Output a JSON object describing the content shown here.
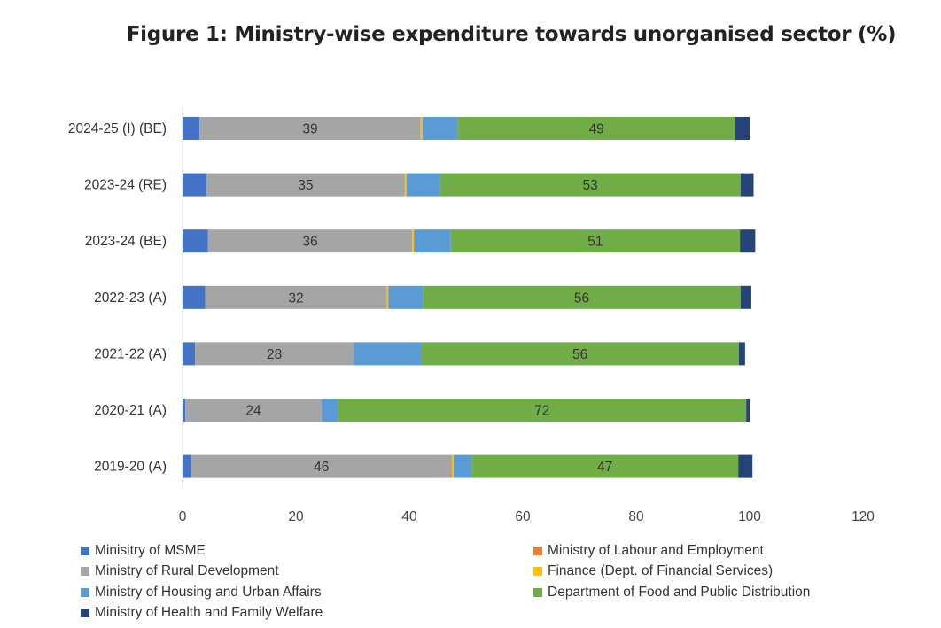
{
  "chart_data": {
    "type": "bar",
    "orientation": "horizontal",
    "stacked": true,
    "title": "Figure 1: Ministry-wise expenditure towards unorganised sector (%)",
    "categories": [
      "2024-25 (I) (BE)",
      "2023-24 (RE)",
      "2023-24 (BE)",
      "2022-23 (A)",
      "2021-22 (A)",
      "2020-21 (A)",
      "2019-20 (A)"
    ],
    "xlim": [
      0,
      120
    ],
    "xticks": [
      0,
      20,
      40,
      60,
      80,
      100,
      120
    ],
    "grid": false,
    "legend_position": "bottom",
    "series": [
      {
        "name": "Minisitry of MSME",
        "color": "#4472c4",
        "values": [
          3,
          4.2,
          4.5,
          4,
          2.2,
          0.5,
          1.5
        ],
        "labels": [
          null,
          null,
          null,
          null,
          null,
          null,
          null
        ]
      },
      {
        "name": "Ministry of Labour and Employment",
        "color": "#ed7d31",
        "values": [
          0,
          0,
          0,
          0,
          0,
          0,
          0
        ],
        "labels": [
          null,
          null,
          null,
          null,
          null,
          null,
          null
        ]
      },
      {
        "name": "Ministry of Rural Development",
        "color": "#a5a5a5",
        "values": [
          39,
          35,
          36,
          32,
          28,
          24,
          46
        ],
        "labels": [
          "39",
          "35",
          "36",
          "32",
          "28",
          "24",
          "46"
        ]
      },
      {
        "name": "Finance (Dept. of Financial Services)",
        "color": "#ffc000",
        "values": [
          0.3,
          0.3,
          0.3,
          0.3,
          0,
          0,
          0.3
        ],
        "labels": [
          null,
          null,
          null,
          null,
          null,
          null,
          null
        ]
      },
      {
        "name": "Ministry of Housing and Urban Affairs",
        "color": "#5b9bd5",
        "values": [
          6.2,
          5.9,
          6.5,
          6.1,
          11.9,
          2.9,
          3.2
        ],
        "labels": [
          null,
          null,
          null,
          null,
          null,
          null,
          null
        ]
      },
      {
        "name": "Department of Food and Public Distribution",
        "color": "#70ad47",
        "values": [
          49,
          53,
          51,
          56,
          56,
          72,
          47
        ],
        "labels": [
          "49",
          "53",
          "51",
          "56",
          "56",
          "72",
          "47"
        ]
      },
      {
        "name": "Ministry of Health and Family Welfare",
        "color": "#264478",
        "values": [
          2.5,
          2.3,
          2.7,
          1.9,
          1.1,
          0.6,
          2.5
        ],
        "labels": [
          null,
          null,
          null,
          null,
          null,
          null,
          null
        ]
      }
    ]
  }
}
